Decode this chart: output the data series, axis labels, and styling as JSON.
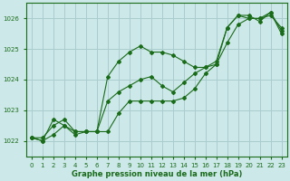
{
  "bg_color": "#cce8e8",
  "grid_color": "#aacccc",
  "line_color": "#1a6b1a",
  "marker_color": "#1a6b1a",
  "xlabel": "Graphe pression niveau de la mer (hPa)",
  "ylim": [
    1021.5,
    1026.5
  ],
  "xlim": [
    -0.5,
    23.5
  ],
  "yticks": [
    1022,
    1023,
    1024,
    1025,
    1026
  ],
  "xticks": [
    0,
    1,
    2,
    3,
    4,
    5,
    6,
    7,
    8,
    9,
    10,
    11,
    12,
    13,
    14,
    15,
    16,
    17,
    18,
    19,
    20,
    21,
    22,
    23
  ],
  "series1_x": [
    0,
    1,
    2,
    3,
    4,
    5,
    6,
    7,
    8,
    9,
    10,
    11,
    12,
    13,
    14,
    15,
    16,
    17,
    18,
    19,
    20,
    21,
    22,
    23
  ],
  "series1_y": [
    1022.1,
    1022.1,
    1022.5,
    1022.7,
    1022.3,
    1022.3,
    1022.3,
    1022.3,
    1022.9,
    1023.3,
    1023.3,
    1023.3,
    1023.3,
    1023.3,
    1023.4,
    1023.7,
    1024.2,
    1024.5,
    1025.2,
    1025.8,
    1026.0,
    1026.0,
    1026.1,
    1025.7
  ],
  "series2_x": [
    0,
    1,
    2,
    3,
    4,
    5,
    6,
    7,
    8,
    9,
    10,
    11,
    12,
    13,
    14,
    15,
    16,
    17,
    18,
    19,
    20,
    21,
    22,
    23
  ],
  "series2_y": [
    1022.1,
    1022.0,
    1022.2,
    1022.5,
    1022.3,
    1022.3,
    1022.3,
    1023.3,
    1023.6,
    1023.8,
    1024.0,
    1024.1,
    1023.8,
    1023.6,
    1023.9,
    1024.2,
    1024.4,
    1024.6,
    1025.7,
    1026.1,
    1026.0,
    1026.0,
    1026.2,
    1025.5
  ],
  "series3_x": [
    0,
    1,
    2,
    3,
    4,
    5,
    6,
    7,
    8,
    9,
    10,
    11,
    12,
    13,
    14,
    15,
    16,
    17,
    18,
    19,
    20,
    21,
    22,
    23
  ],
  "series3_y": [
    1022.1,
    1022.0,
    1022.7,
    1022.5,
    1022.2,
    1022.3,
    1022.3,
    1024.1,
    1024.6,
    1024.9,
    1025.1,
    1024.9,
    1024.9,
    1024.8,
    1024.6,
    1024.4,
    1024.4,
    1024.5,
    1025.7,
    1026.1,
    1026.1,
    1025.9,
    1026.2,
    1025.6
  ]
}
